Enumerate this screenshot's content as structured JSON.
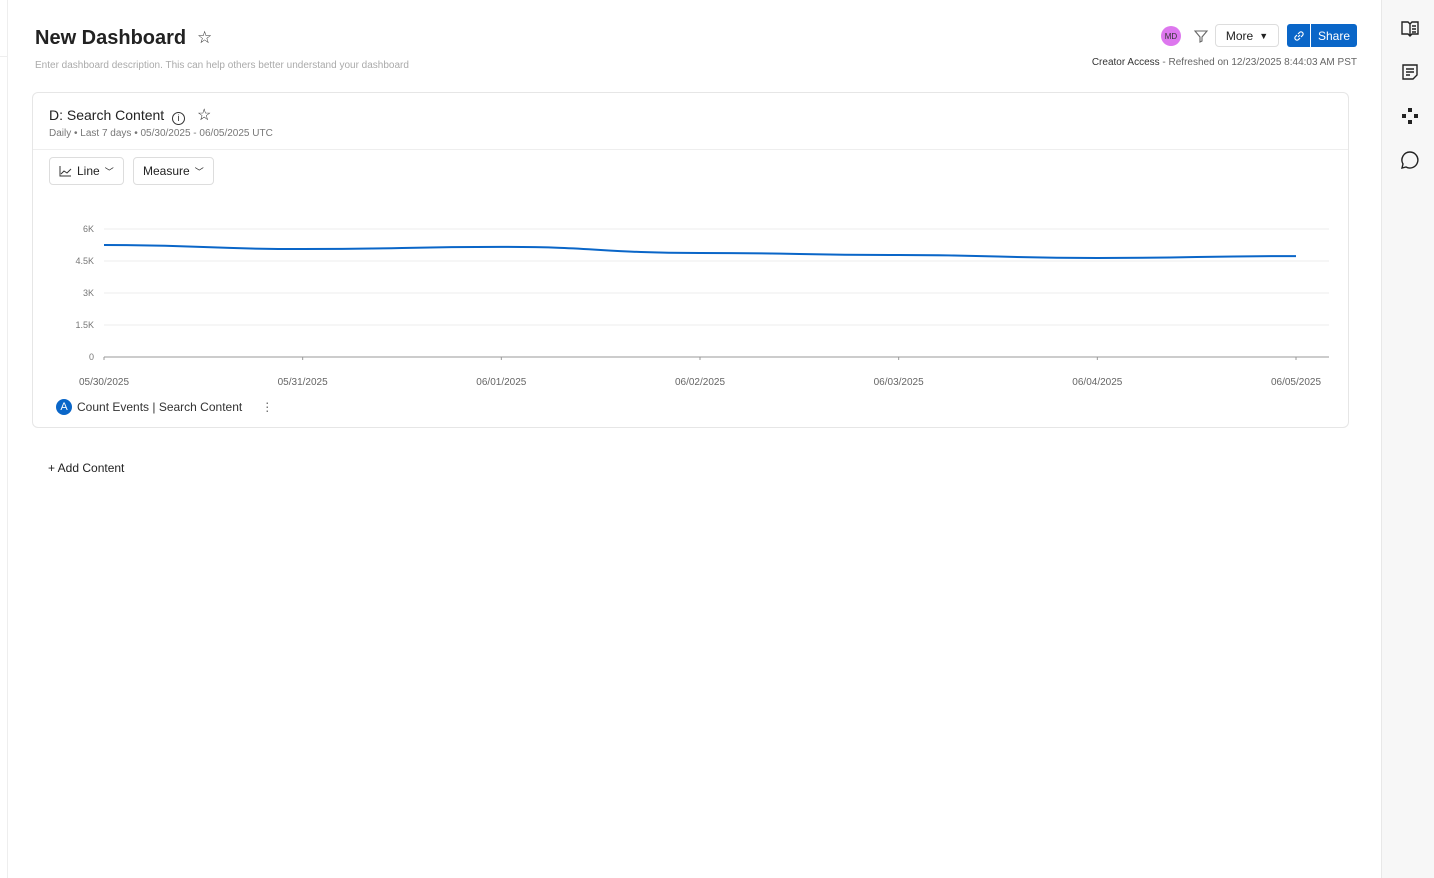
{
  "header": {
    "title": "New Dashboard",
    "description_placeholder": "Enter dashboard description. This can help others better understand your dashboard",
    "avatar": "MD",
    "more_label": "More",
    "share_label": "Share",
    "access": "Creator Access",
    "refreshed": " - Refreshed on 12/23/2025 8:44:03 AM PST"
  },
  "card": {
    "title": "D: Search Content",
    "subtitle": "Daily • Last 7 days • 05/30/2025  -  06/05/2025  UTC",
    "chart_type_label": "Line",
    "measure_label": "Measure",
    "legend_badge": "A",
    "legend_label": "Count Events | Search Content"
  },
  "add_content": "+ Add Content",
  "chart_data": {
    "type": "line",
    "categories": [
      "05/30/2025",
      "05/31/2025",
      "06/01/2025",
      "06/02/2025",
      "06/03/2025",
      "06/04/2025",
      "06/05/2025"
    ],
    "series": [
      {
        "name": "Count Events | Search Content",
        "values": [
          5250,
          5060,
          5160,
          4875,
          4780,
          4640,
          4730
        ],
        "color": "#0a66c8"
      }
    ],
    "yticks": [
      "0",
      "1.5K",
      "3K",
      "4.5K",
      "6K"
    ],
    "ytick_values": [
      0,
      1500,
      3000,
      4500,
      6000
    ],
    "ylim": [
      0,
      6000
    ],
    "grid": true,
    "legend": "bottom-left"
  }
}
